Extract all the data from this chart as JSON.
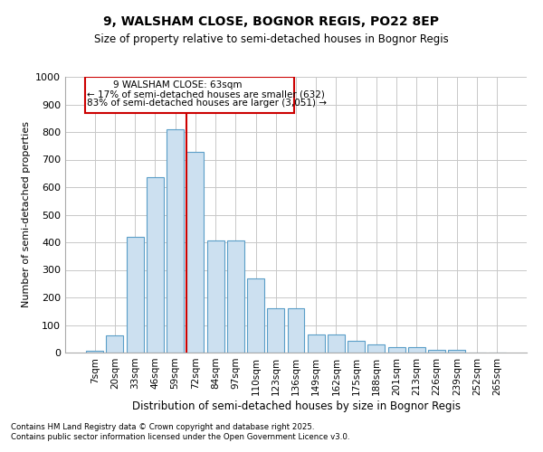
{
  "title1": "9, WALSHAM CLOSE, BOGNOR REGIS, PO22 8EP",
  "title2": "Size of property relative to semi-detached houses in Bognor Regis",
  "xlabel": "Distribution of semi-detached houses by size in Bognor Regis",
  "ylabel": "Number of semi-detached properties",
  "categories": [
    "7sqm",
    "20sqm",
    "33sqm",
    "46sqm",
    "59sqm",
    "72sqm",
    "84sqm",
    "97sqm",
    "110sqm",
    "123sqm",
    "136sqm",
    "149sqm",
    "162sqm",
    "175sqm",
    "188sqm",
    "201sqm",
    "213sqm",
    "226sqm",
    "239sqm",
    "252sqm",
    "265sqm"
  ],
  "values": [
    5,
    62,
    420,
    635,
    810,
    727,
    408,
    408,
    268,
    160,
    160,
    65,
    65,
    42,
    30,
    20,
    20,
    10,
    10,
    0,
    0
  ],
  "bar_color": "#cce0f0",
  "bar_edge_color": "#5a9ec8",
  "grid_color": "#c8c8c8",
  "background_color": "#ffffff",
  "property_label": "9 WALSHAM CLOSE: 63sqm",
  "annotation_line1": "← 17% of semi-detached houses are smaller (632)",
  "annotation_line2": "83% of semi-detached houses are larger (3,051) →",
  "box_color": "#cc0000",
  "ylim_max": 1000,
  "yticks": [
    0,
    100,
    200,
    300,
    400,
    500,
    600,
    700,
    800,
    900,
    1000
  ],
  "red_line_x": 4.575,
  "footnote1": "Contains HM Land Registry data © Crown copyright and database right 2025.",
  "footnote2": "Contains public sector information licensed under the Open Government Licence v3.0."
}
